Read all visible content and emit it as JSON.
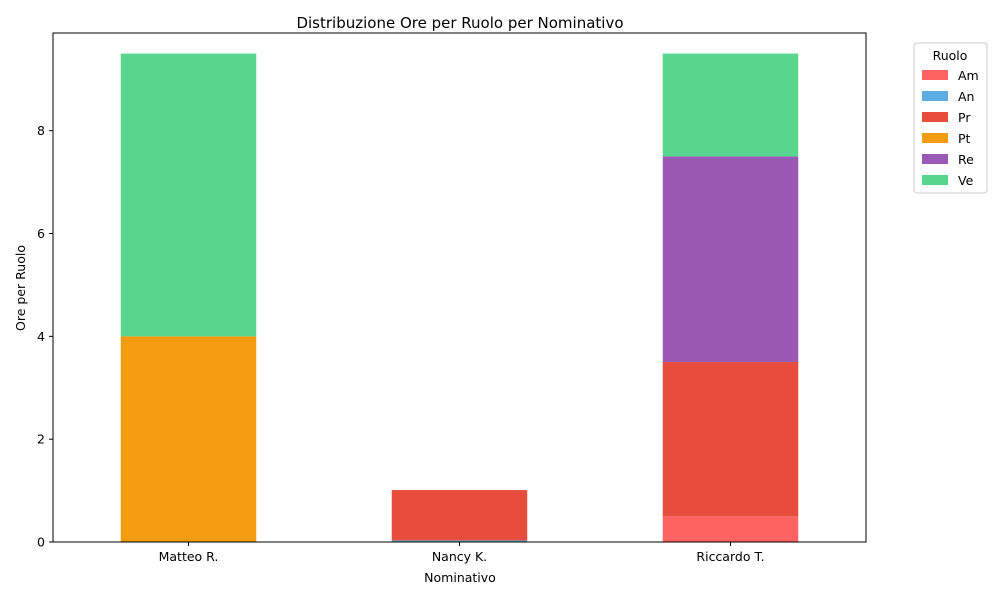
{
  "chart_data": {
    "type": "bar",
    "stacked": true,
    "title": "Distribuzione Ore per Ruolo per Nominativo",
    "xlabel": "Nominativo",
    "ylabel": "Ore per Ruolo",
    "categories": [
      "Matteo R.",
      "Nancy K.",
      "Riccardo T."
    ],
    "ylim": [
      0,
      9.9
    ],
    "yticks": [
      0,
      2,
      4,
      6,
      8
    ],
    "grid": false,
    "legend": {
      "title": "Ruolo",
      "placement": "outside-top-right"
    },
    "series": [
      {
        "name": "Am",
        "color": "#ff6361",
        "values": [
          0,
          0,
          0.5
        ]
      },
      {
        "name": "An",
        "color": "#5dade2",
        "values": [
          0,
          0.03,
          0
        ]
      },
      {
        "name": "Pr",
        "color": "#e74c3c",
        "values": [
          0,
          0.98,
          3.0
        ]
      },
      {
        "name": "Pt",
        "color": "#f39c12",
        "values": [
          4.0,
          0,
          0
        ]
      },
      {
        "name": "Re",
        "color": "#9b59b6",
        "values": [
          0,
          0,
          4.0
        ]
      },
      {
        "name": "Ve",
        "color": "#58d68d",
        "values": [
          5.5,
          0,
          2.0
        ]
      }
    ]
  }
}
